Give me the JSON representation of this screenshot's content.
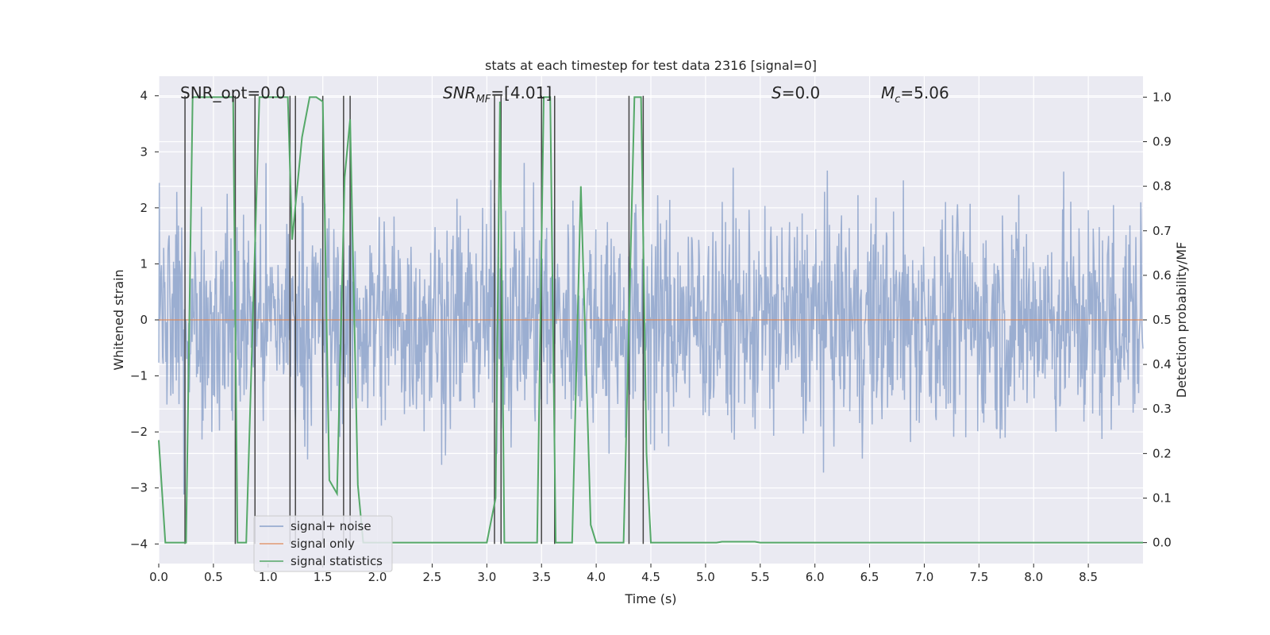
{
  "chart_data": {
    "type": "line",
    "title": "stats at each timestep for test data 2316 [signal=0]",
    "xlabel": "Time (s)",
    "ylabel": "Whitened strain",
    "ylabel_right": "Detection probability/MF",
    "xlim": [
      0.0,
      9.0
    ],
    "ylim": [
      -4.35,
      4.35
    ],
    "ylim_right": [
      -0.047,
      1.047
    ],
    "x_ticks": [
      "0.0",
      "0.5",
      "1.0",
      "1.5",
      "2.0",
      "2.5",
      "3.0",
      "3.5",
      "4.0",
      "4.5",
      "5.0",
      "5.5",
      "6.0",
      "6.5",
      "7.0",
      "7.5",
      "8.0",
      "8.5"
    ],
    "y_ticks": [
      "−4",
      "−3",
      "−2",
      "−1",
      "0",
      "1",
      "2",
      "3",
      "4"
    ],
    "y_ticks_right": [
      "0.0",
      "0.1",
      "0.2",
      "0.3",
      "0.4",
      "0.5",
      "0.6",
      "0.7",
      "0.8",
      "0.9",
      "1.0"
    ],
    "grid": true,
    "legend_position": "lower-left",
    "annotations": {
      "snr_opt": "SNR_opt=0.0",
      "snr_mf_sym": "SNR",
      "snr_mf_sub": "MF",
      "snr_mf_val": "=[4.01]",
      "s_sym": "S",
      "s_val": "=0.0",
      "mc_sym": "M",
      "mc_sub": "c",
      "mc_val": "=5.06"
    },
    "series": [
      {
        "name": "signal+ noise",
        "color": "#4c72b0",
        "kind": "noise_trace",
        "approx_range": [
          -4.0,
          4.0
        ]
      },
      {
        "name": "signal only",
        "color": "#dd8452",
        "kind": "flat",
        "value": 0.0
      },
      {
        "name": "signal statistics",
        "color": "#55a868",
        "axis": "right",
        "x": [
          0.0,
          0.06,
          0.25,
          0.31,
          0.68,
          0.72,
          0.8,
          0.92,
          1.0,
          1.18,
          1.22,
          1.31,
          1.38,
          1.44,
          1.5,
          1.56,
          1.63,
          1.7,
          1.75,
          1.82,
          1.87,
          3.0,
          3.08,
          3.12,
          3.16,
          3.3,
          3.46,
          3.52,
          3.58,
          3.63,
          3.68,
          3.78,
          3.86,
          3.95,
          4.0,
          4.07,
          4.25,
          4.35,
          4.41,
          4.46,
          4.5,
          4.55,
          5.1,
          5.15,
          5.45,
          5.5,
          9.0
        ],
        "values": [
          0.23,
          0.0,
          0.0,
          1.0,
          1.0,
          0.0,
          0.0,
          1.0,
          1.0,
          1.0,
          0.68,
          0.91,
          1.0,
          1.0,
          0.99,
          0.14,
          0.11,
          0.82,
          0.95,
          0.13,
          0.0,
          0.0,
          0.1,
          0.99,
          0.0,
          0.0,
          0.0,
          1.0,
          1.0,
          0.0,
          0.0,
          0.0,
          0.8,
          0.04,
          0.0,
          0.0,
          0.0,
          1.0,
          1.0,
          0.2,
          0.0,
          0.0,
          0.0,
          0.002,
          0.002,
          0.0,
          0.0
        ]
      }
    ],
    "vertical_markers": {
      "color": "#444444",
      "x": [
        0.24,
        0.7,
        0.88,
        1.2,
        1.25,
        1.5,
        1.69,
        1.75,
        3.07,
        3.13,
        3.5,
        3.62,
        4.3,
        4.43
      ],
      "y_range": [
        -4.0,
        4.0
      ]
    }
  }
}
